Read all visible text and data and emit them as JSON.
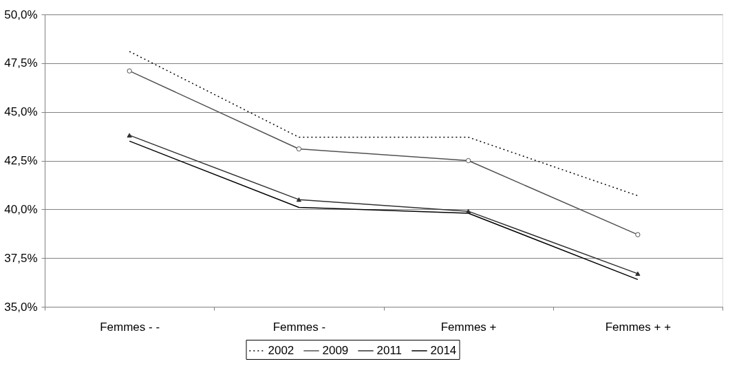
{
  "chart_data": {
    "type": "line",
    "categories": [
      "Femmes - -",
      "Femmes -",
      "Femmes +",
      "Femmes + +"
    ],
    "series": [
      {
        "name": "2002",
        "color": "#000000",
        "values": [
          48.1,
          43.7,
          43.7,
          40.7
        ],
        "line_style": "dotted",
        "marker": "none"
      },
      {
        "name": "2009",
        "color": "#505050",
        "values": [
          47.1,
          43.1,
          42.5,
          38.7
        ],
        "line_style": "solid",
        "marker": "circle"
      },
      {
        "name": "2011",
        "color": "#303030",
        "values": [
          43.8,
          40.5,
          39.9,
          36.7
        ],
        "line_style": "solid",
        "marker": "triangle"
      },
      {
        "name": "2014",
        "color": "#000000",
        "values": [
          43.5,
          40.1,
          39.8,
          36.4
        ],
        "line_style": "solid",
        "marker": "none"
      }
    ],
    "ylim": [
      35,
      50
    ],
    "yticks": [
      {
        "value": 35,
        "label": "35,0%"
      },
      {
        "value": 37.5,
        "label": "37,5%"
      },
      {
        "value": 40,
        "label": "40,0%"
      },
      {
        "value": 42.5,
        "label": "42,5%"
      },
      {
        "value": 45,
        "label": "45,0%"
      },
      {
        "value": 47.5,
        "label": "47,5%"
      },
      {
        "value": 50,
        "label": "50,0%"
      }
    ],
    "grid": "y",
    "legend": "bottom"
  }
}
